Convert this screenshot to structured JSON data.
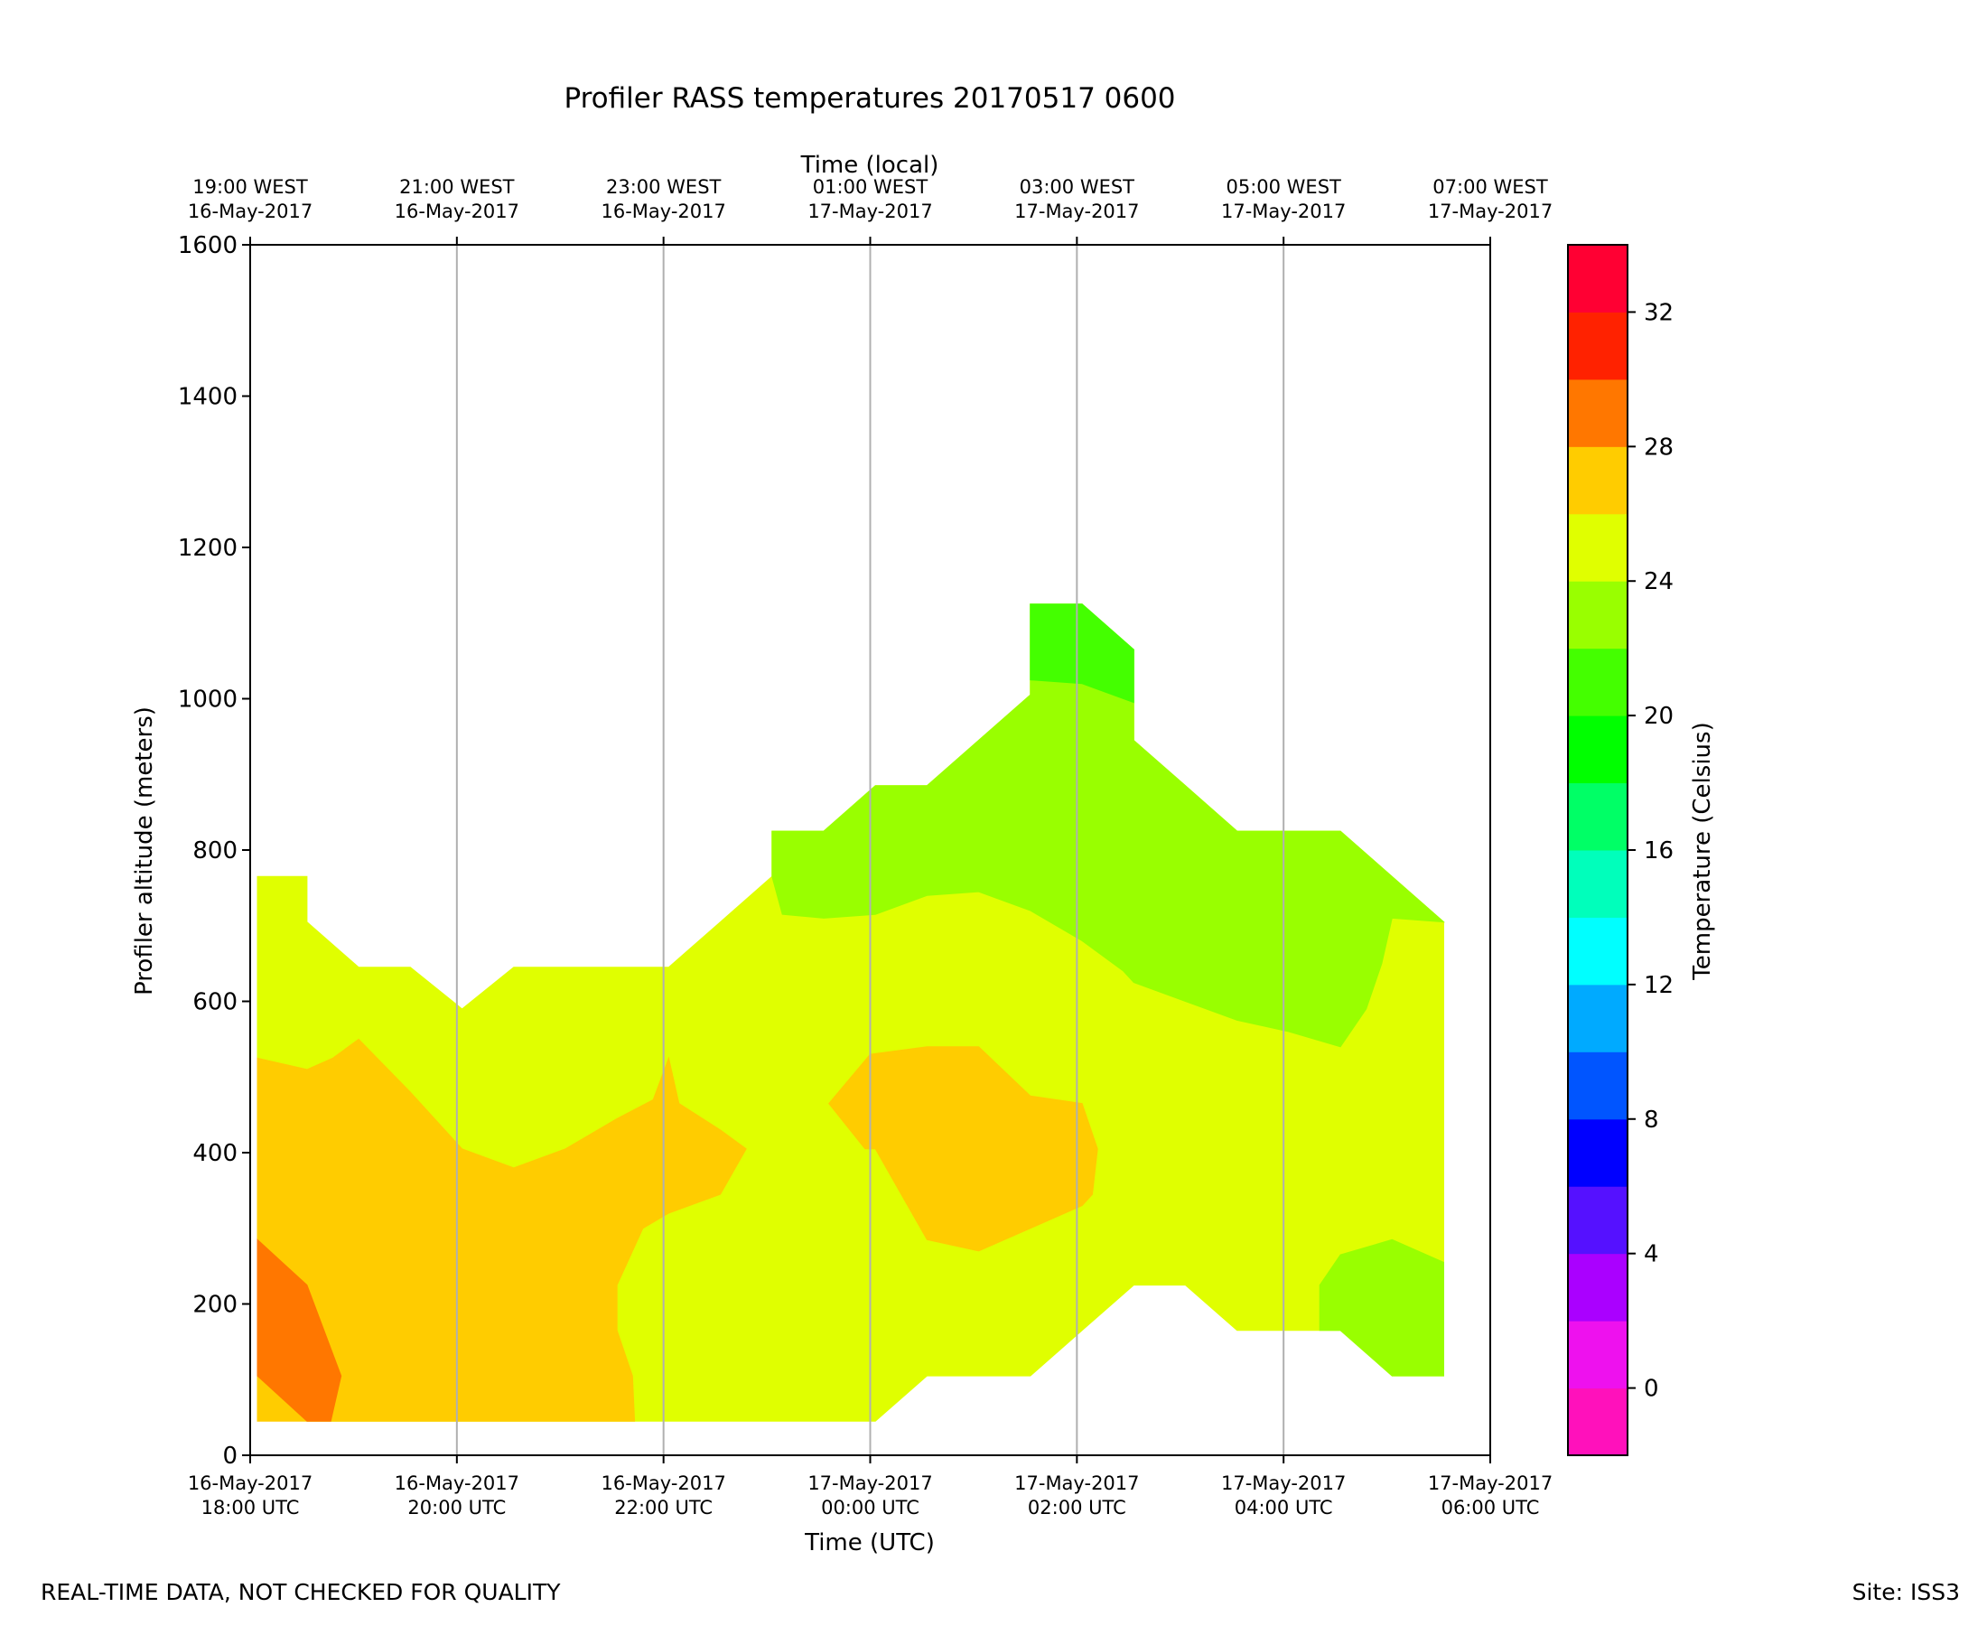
{
  "chart_data": {
    "type": "contour",
    "title": "Profiler RASS temperatures 20170517 0600",
    "xlabel": "Time (UTC)",
    "x2label": "Time (local)",
    "ylabel": "Profiler altitude (meters)",
    "colorbar_label": "Temperature (Celsius)",
    "x_range_hours": [
      0,
      12
    ],
    "ylim": [
      0,
      1600
    ],
    "y_ticks": [
      0,
      200,
      400,
      600,
      800,
      1000,
      1200,
      1400,
      1600
    ],
    "x_ticks_utc": [
      {
        "hour": 0,
        "line1": "16-May-2017",
        "line2": "18:00 UTC"
      },
      {
        "hour": 2,
        "line1": "16-May-2017",
        "line2": "20:00 UTC"
      },
      {
        "hour": 4,
        "line1": "16-May-2017",
        "line2": "22:00 UTC"
      },
      {
        "hour": 6,
        "line1": "17-May-2017",
        "line2": "00:00 UTC"
      },
      {
        "hour": 8,
        "line1": "17-May-2017",
        "line2": "02:00 UTC"
      },
      {
        "hour": 10,
        "line1": "17-May-2017",
        "line2": "04:00 UTC"
      },
      {
        "hour": 12,
        "line1": "17-May-2017",
        "line2": "06:00 UTC"
      }
    ],
    "x_ticks_local": [
      {
        "hour": 0,
        "line1": "19:00 WEST",
        "line2": "16-May-2017"
      },
      {
        "hour": 2,
        "line1": "21:00 WEST",
        "line2": "16-May-2017"
      },
      {
        "hour": 4,
        "line1": "23:00 WEST",
        "line2": "16-May-2017"
      },
      {
        "hour": 6,
        "line1": "01:00 WEST",
        "line2": "17-May-2017"
      },
      {
        "hour": 8,
        "line1": "03:00 WEST",
        "line2": "17-May-2017"
      },
      {
        "hour": 10,
        "line1": "05:00 WEST",
        "line2": "17-May-2017"
      },
      {
        "hour": 12,
        "line1": "07:00 WEST",
        "line2": "17-May-2017"
      }
    ],
    "grid_vertical": true,
    "colorbar": {
      "range": [
        -2,
        34
      ],
      "ticks": [
        0,
        4,
        8,
        12,
        16,
        20,
        24,
        28,
        32
      ],
      "levels": [
        {
          "from": -2,
          "to": 0,
          "color": "#ff11bb"
        },
        {
          "from": 0,
          "to": 2,
          "color": "#ee11ee"
        },
        {
          "from": 2,
          "to": 4,
          "color": "#aa00ff"
        },
        {
          "from": 4,
          "to": 6,
          "color": "#5511ff"
        },
        {
          "from": 6,
          "to": 8,
          "color": "#0000ff"
        },
        {
          "from": 8,
          "to": 10,
          "color": "#0055ff"
        },
        {
          "from": 10,
          "to": 12,
          "color": "#00aaff"
        },
        {
          "from": 12,
          "to": 14,
          "color": "#00ffff"
        },
        {
          "from": 14,
          "to": 16,
          "color": "#00ffbb"
        },
        {
          "from": 16,
          "to": 18,
          "color": "#00ff66"
        },
        {
          "from": 18,
          "to": 20,
          "color": "#00ff00"
        },
        {
          "from": 20,
          "to": 22,
          "color": "#44ff00"
        },
        {
          "from": 22,
          "to": 24,
          "color": "#99ff00"
        },
        {
          "from": 24,
          "to": 26,
          "color": "#e0ff00"
        },
        {
          "from": 26,
          "to": 28,
          "color": "#ffcc00"
        },
        {
          "from": 28,
          "to": 30,
          "color": "#ff7700"
        },
        {
          "from": 30,
          "to": 32,
          "color": "#ff2200"
        },
        {
          "from": 32,
          "to": 34,
          "color": "#ff0033"
        }
      ]
    },
    "regions": [
      {
        "level": "24-26 C",
        "color": "#e0ff00",
        "points": [
          [
            0.07,
            765
          ],
          [
            0.55,
            765
          ],
          [
            0.55,
            705
          ],
          [
            1.05,
            645
          ],
          [
            1.55,
            645
          ],
          [
            2.05,
            590
          ],
          [
            2.55,
            645
          ],
          [
            3.55,
            645
          ],
          [
            4.05,
            645
          ],
          [
            4.55,
            705
          ],
          [
            5.05,
            765
          ],
          [
            5.05,
            825
          ],
          [
            5.55,
            825
          ],
          [
            6.05,
            885
          ],
          [
            6.55,
            885
          ],
          [
            7.55,
            1005
          ],
          [
            7.55,
            1125
          ],
          [
            8.05,
            1125
          ],
          [
            8.55,
            1065
          ],
          [
            8.55,
            945
          ],
          [
            9.05,
            885
          ],
          [
            9.55,
            825
          ],
          [
            10.55,
            825
          ],
          [
            11.55,
            705
          ],
          [
            11.55,
            105
          ],
          [
            11.05,
            105
          ],
          [
            10.55,
            165
          ],
          [
            10.05,
            165
          ],
          [
            9.55,
            165
          ],
          [
            9.05,
            225
          ],
          [
            8.55,
            225
          ],
          [
            8.05,
            165
          ],
          [
            7.55,
            105
          ],
          [
            7.05,
            105
          ],
          [
            6.55,
            105
          ],
          [
            6.05,
            45
          ],
          [
            5.55,
            45
          ],
          [
            5.05,
            45
          ],
          [
            4.55,
            45
          ],
          [
            4.05,
            45
          ],
          [
            3.55,
            45
          ],
          [
            3.05,
            45
          ],
          [
            2.55,
            45
          ],
          [
            2.05,
            45
          ],
          [
            1.55,
            45
          ],
          [
            1.05,
            45
          ],
          [
            0.55,
            45
          ],
          [
            0.07,
            105
          ]
        ]
      },
      {
        "level": "26-28 C",
        "color": "#ffcc00",
        "points": [
          [
            0.07,
            525
          ],
          [
            0.55,
            510
          ],
          [
            0.8,
            525
          ],
          [
            1.05,
            550
          ],
          [
            1.55,
            480
          ],
          [
            1.65,
            465
          ],
          [
            2.05,
            405
          ],
          [
            2.55,
            380
          ],
          [
            3.05,
            405
          ],
          [
            3.55,
            445
          ],
          [
            3.9,
            470
          ],
          [
            4.05,
            525
          ],
          [
            4.15,
            465
          ],
          [
            4.55,
            430
          ],
          [
            4.8,
            405
          ],
          [
            4.55,
            345
          ],
          [
            4.05,
            320
          ],
          [
            3.8,
            300
          ],
          [
            3.55,
            225
          ],
          [
            3.55,
            165
          ],
          [
            3.7,
            105
          ],
          [
            3.72,
            45
          ],
          [
            0.07,
            45
          ]
        ]
      },
      {
        "level": "26-28 C",
        "color": "#ffcc00",
        "points": [
          [
            5.6,
            465
          ],
          [
            6.0,
            530
          ],
          [
            6.55,
            540
          ],
          [
            7.05,
            540
          ],
          [
            7.55,
            475
          ],
          [
            8.05,
            465
          ],
          [
            8.2,
            405
          ],
          [
            8.15,
            345
          ],
          [
            8.05,
            330
          ],
          [
            7.55,
            300
          ],
          [
            7.05,
            270
          ],
          [
            6.55,
            285
          ],
          [
            6.3,
            345
          ],
          [
            6.05,
            405
          ],
          [
            5.95,
            405
          ]
        ]
      },
      {
        "level": "28-30 C",
        "color": "#ff7700",
        "points": [
          [
            0.07,
            285
          ],
          [
            0.55,
            225
          ],
          [
            0.88,
            105
          ],
          [
            0.78,
            45
          ],
          [
            0.55,
            45
          ],
          [
            0.07,
            105
          ]
        ]
      },
      {
        "level": "22-24 C",
        "color": "#99ff00",
        "points": [
          [
            5.05,
            765
          ],
          [
            5.05,
            825
          ],
          [
            5.55,
            825
          ],
          [
            6.05,
            885
          ],
          [
            6.55,
            885
          ],
          [
            7.55,
            1005
          ],
          [
            7.55,
            1125
          ],
          [
            8.05,
            1125
          ],
          [
            8.55,
            1065
          ],
          [
            8.55,
            945
          ],
          [
            9.05,
            885
          ],
          [
            9.55,
            825
          ],
          [
            10.55,
            825
          ],
          [
            11.55,
            705
          ],
          [
            11.05,
            710
          ],
          [
            10.95,
            650
          ],
          [
            10.8,
            590
          ],
          [
            10.55,
            540
          ],
          [
            10.05,
            560
          ],
          [
            9.55,
            575
          ],
          [
            9.05,
            600
          ],
          [
            8.55,
            625
          ],
          [
            8.45,
            640
          ],
          [
            8.05,
            680
          ],
          [
            7.55,
            720
          ],
          [
            7.05,
            745
          ],
          [
            6.55,
            740
          ],
          [
            6.05,
            715
          ],
          [
            5.55,
            710
          ],
          [
            5.15,
            715
          ]
        ]
      },
      {
        "level": "22-24 C",
        "color": "#99ff00",
        "points": [
          [
            10.35,
            225
          ],
          [
            10.55,
            265
          ],
          [
            11.05,
            285
          ],
          [
            11.55,
            255
          ],
          [
            11.55,
            105
          ],
          [
            11.05,
            105
          ],
          [
            10.55,
            165
          ],
          [
            10.35,
            165
          ]
        ]
      },
      {
        "level": "20-22 C",
        "color": "#44ff00",
        "points": [
          [
            7.55,
            1025
          ],
          [
            8.05,
            1020
          ],
          [
            8.55,
            995
          ],
          [
            8.55,
            1065
          ],
          [
            8.05,
            1125
          ],
          [
            7.55,
            1125
          ]
        ]
      }
    ]
  },
  "footer": {
    "left_note": "REAL-TIME DATA, NOT CHECKED FOR QUALITY",
    "right_note": "Site: ISS3"
  }
}
